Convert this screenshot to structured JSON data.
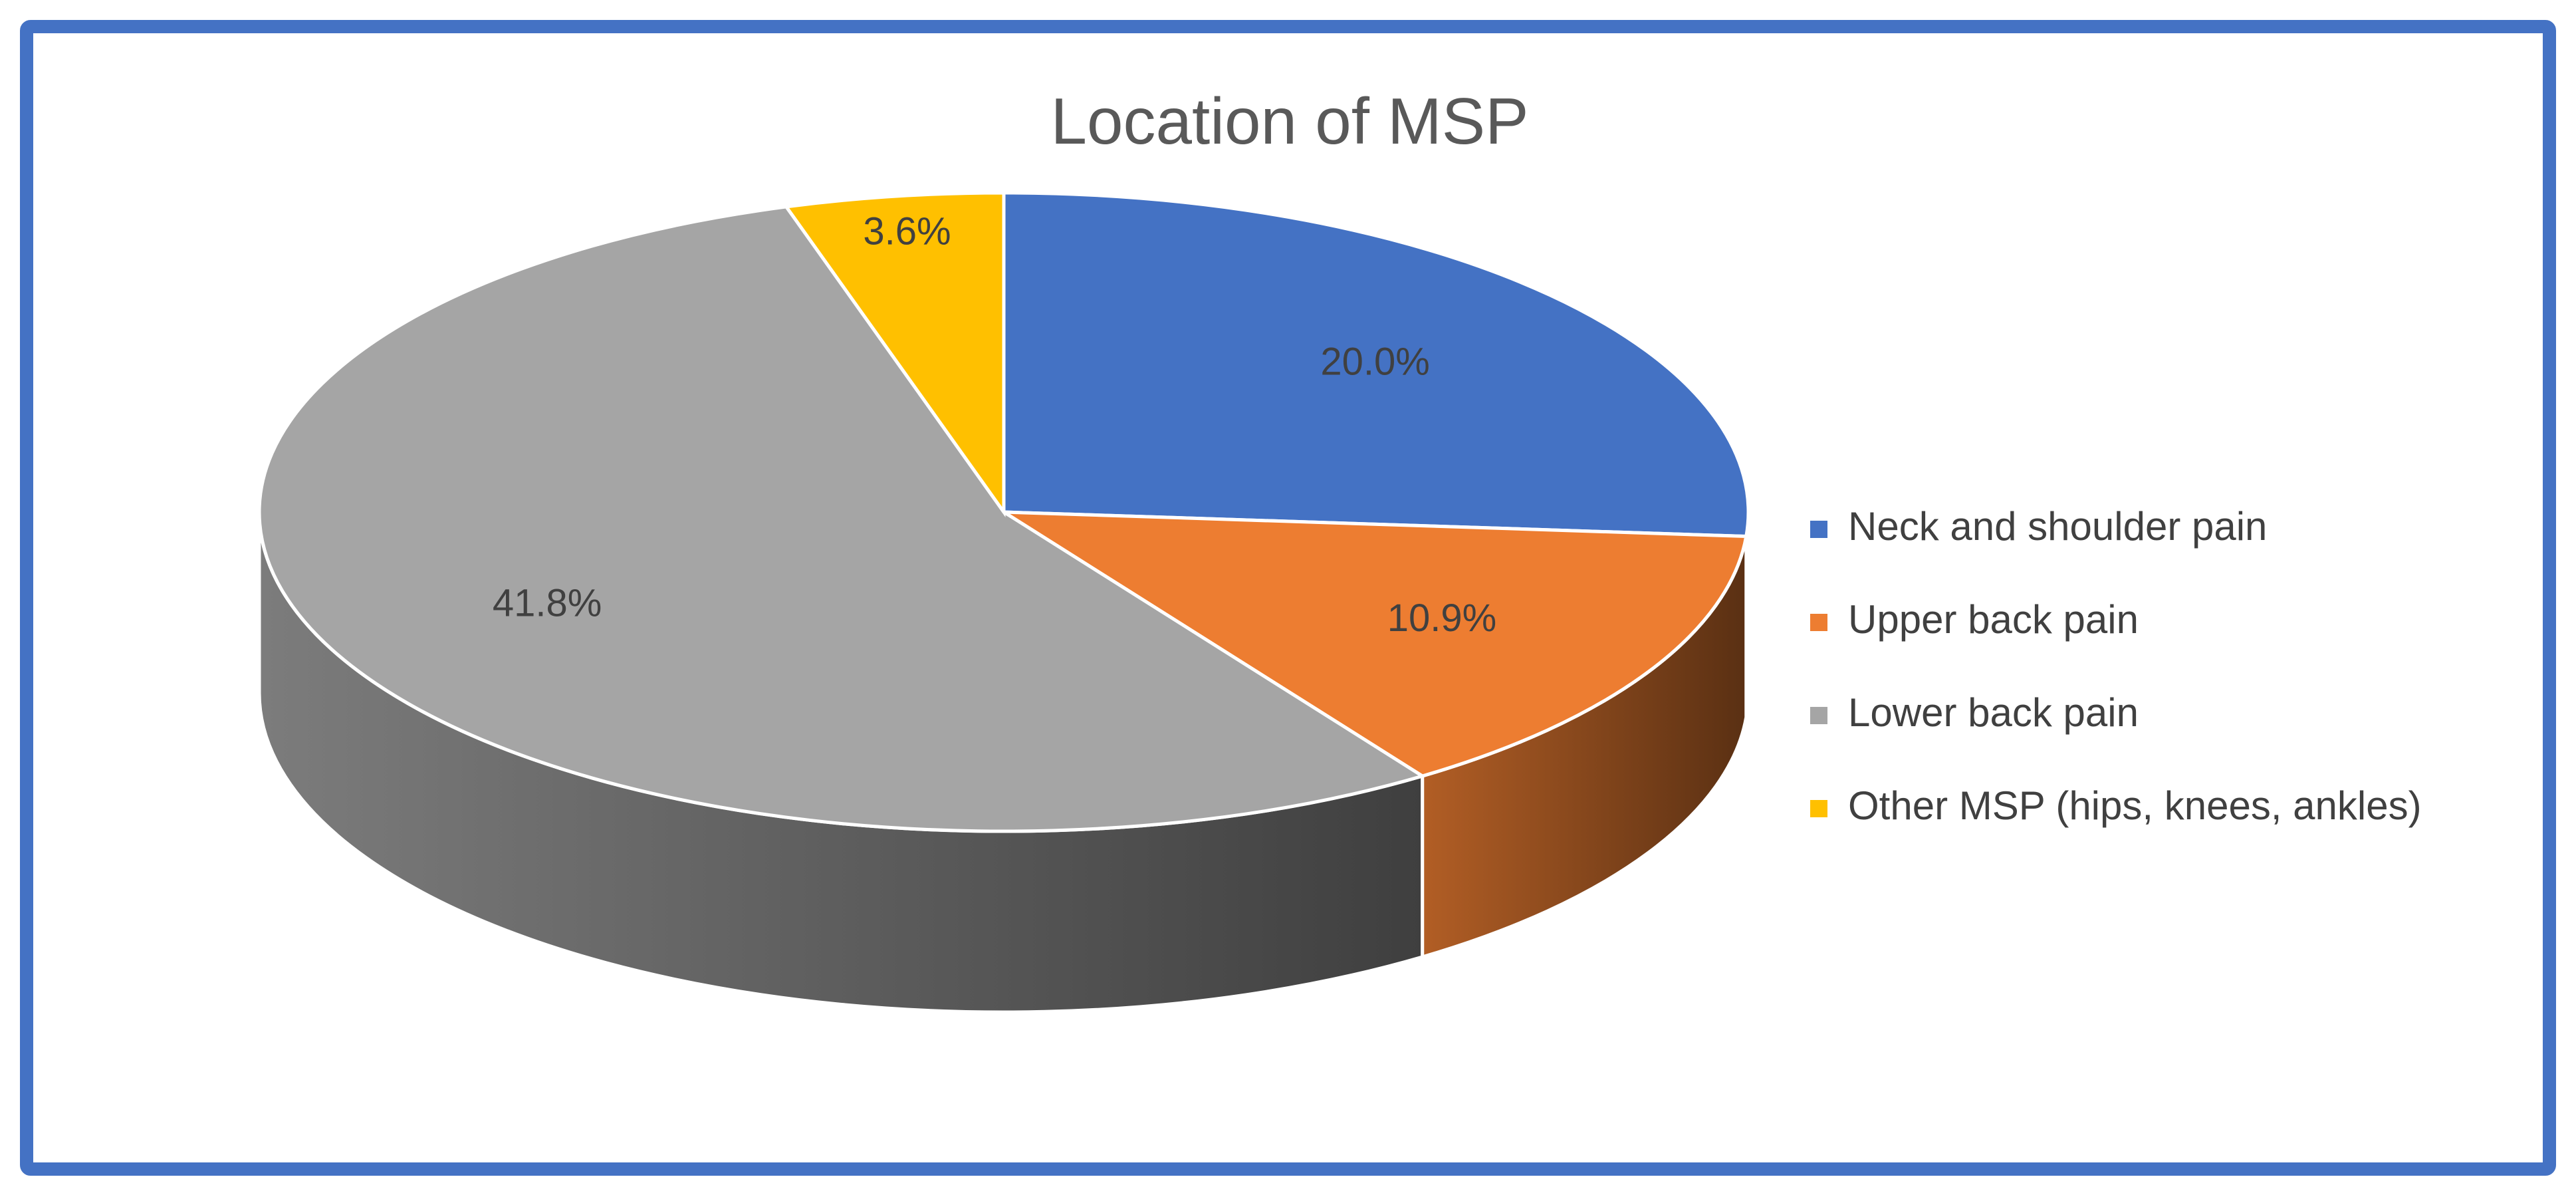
{
  "chart_data": {
    "type": "pie",
    "title": "Location of MSP",
    "categories": [
      "Neck and shoulder pain",
      "Upper back pain",
      "Lower back pain",
      "Other MSP (hips, knees, ankles)"
    ],
    "values": [
      20.0,
      10.9,
      41.8,
      3.6
    ],
    "value_labels": [
      "20.0%",
      "10.9%",
      "41.8%",
      "3.6%"
    ],
    "colors": [
      "#4472c4",
      "#ed7d31",
      "#a5a5a5",
      "#ffc000"
    ],
    "legend": "right"
  }
}
